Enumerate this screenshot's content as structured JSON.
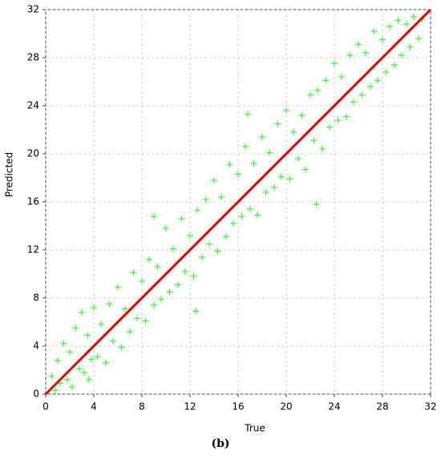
{
  "chart_data": {
    "type": "scatter",
    "xlabel": "True",
    "ylabel": "Predicted",
    "caption": "(b)",
    "xlim": [
      0,
      32
    ],
    "ylim": [
      0,
      32
    ],
    "xticks": [
      0,
      4,
      8,
      12,
      16,
      20,
      24,
      28,
      32
    ],
    "yticks": [
      0,
      4,
      8,
      12,
      16,
      20,
      24,
      28,
      32
    ],
    "grid": true,
    "series": [
      {
        "color": "#33ff33",
        "x": [
          0.5,
          0.8,
          1,
          1.2,
          1.5,
          1.8,
          2,
          2.2,
          2.5,
          2.8,
          3,
          3.2,
          3.5,
          3.8,
          4,
          4.3,
          4.6,
          5,
          5.3,
          5.6,
          6,
          6.3,
          6.6,
          7,
          7.3,
          7.6,
          8,
          8.3,
          8.6,
          9,
          9.3,
          9.6,
          10,
          10.3,
          10.6,
          11,
          11.3,
          11.6,
          12,
          12.3,
          12.6,
          13,
          13.3,
          13.6,
          14,
          14.3,
          14.6,
          15,
          15.3,
          15.6,
          16,
          16.3,
          16.6,
          17,
          17.3,
          17.6,
          18,
          18.3,
          18.6,
          19,
          19.3,
          19.6,
          20,
          20.3,
          20.6,
          21,
          21.3,
          21.6,
          22,
          22.3,
          22.6,
          23,
          23.3,
          23.6,
          24,
          24.3,
          24.6,
          25,
          25.3,
          25.6,
          26,
          26.3,
          26.6,
          27,
          27.3,
          27.6,
          28,
          28.3,
          28.6,
          29,
          29.3,
          29.6,
          30,
          30.3,
          30.6,
          31,
          31.3,
          3.6,
          12.5,
          16.8,
          22.5,
          9
        ],
        "values": [
          1.5,
          0.3,
          2.8,
          0.9,
          4.2,
          1.2,
          3.5,
          0.6,
          5.5,
          2.1,
          6.8,
          1.8,
          4.9,
          2.9,
          7.2,
          3.1,
          5.8,
          2.6,
          7.5,
          4.4,
          8.9,
          3.9,
          7.1,
          5.2,
          10.1,
          6.3,
          9.4,
          6.1,
          11.2,
          7.4,
          10.6,
          7.9,
          13.8,
          8.5,
          12.1,
          9.1,
          14.6,
          10.2,
          13.2,
          9.8,
          15.3,
          11.4,
          16.2,
          12.5,
          17.8,
          11.9,
          16.4,
          13.1,
          19.1,
          14.2,
          18.3,
          14.8,
          20.6,
          15.4,
          19.2,
          14.9,
          21.4,
          16.8,
          20.1,
          17.2,
          22.5,
          18.1,
          23.6,
          17.9,
          21.8,
          19.6,
          23.2,
          18.7,
          24.9,
          21.1,
          25.3,
          20.4,
          26.1,
          22.2,
          27.5,
          22.8,
          26.4,
          23.1,
          28.2,
          24.3,
          29.1,
          24.9,
          28.4,
          25.6,
          30.2,
          26.1,
          29.5,
          26.8,
          30.6,
          27.4,
          31.1,
          28.2,
          30.8,
          28.9,
          31.4,
          29.6,
          31.2,
          1.2,
          6.9,
          23.3,
          15.8,
          14.8
        ]
      }
    ],
    "reference_line": {
      "x": [
        0,
        32
      ],
      "values": [
        0,
        32
      ],
      "color": "#e00000"
    }
  }
}
